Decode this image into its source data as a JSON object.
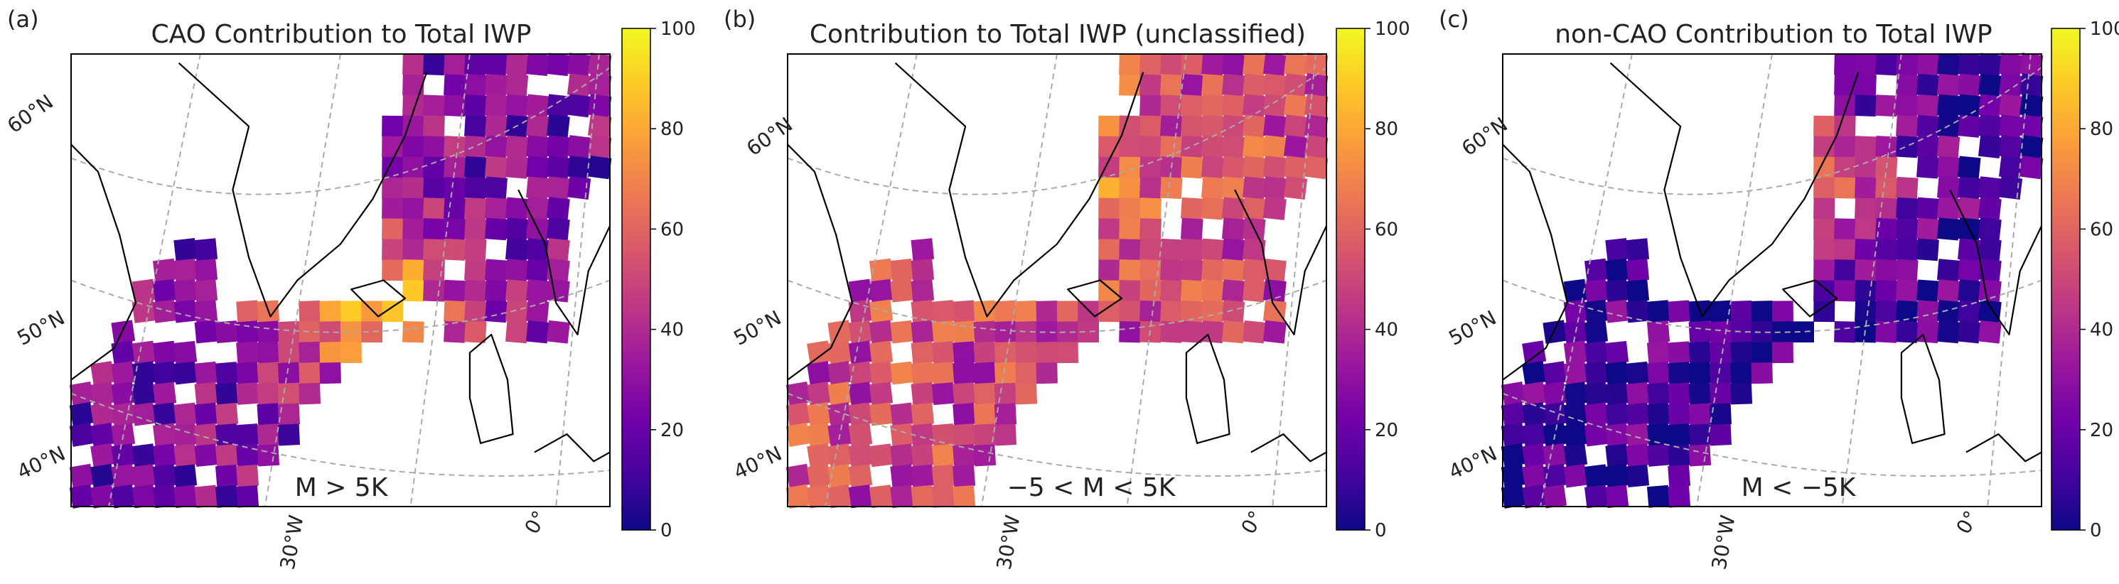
{
  "figure": {
    "colormap": [
      "#0d0887",
      "#46039f",
      "#7201a8",
      "#9c179e",
      "#bd3786",
      "#d8576b",
      "#ed7953",
      "#fb9f3a",
      "#fdca26",
      "#f0f921"
    ],
    "colorbar_ticks": [
      "0",
      "20",
      "40",
      "60",
      "80",
      "100"
    ],
    "lat_labels": [
      "60°N",
      "50°N",
      "40°N"
    ],
    "lon_labels": [
      "30°W",
      "0°"
    ]
  },
  "chart_data": [
    {
      "type": "heatmap",
      "panel_letter": "(a)",
      "title": "CAO Contribution to Total IWP",
      "annotation": "M > 5K",
      "colorbar_range": [
        0,
        100
      ],
      "dominant_values": "high (60–100) south and east of Greenland and toward Norway; low (0–30) along the Labrador Sea and Greenland coasts",
      "seed": 11,
      "bias": 0.25,
      "hotspot": [
        0.55,
        0.55
      ],
      "hot": 0.55
    },
    {
      "type": "heatmap",
      "panel_letter": "(b)",
      "title": "Contribution to Total IWP (unclassified)",
      "annotation": "−5 < M < 5K",
      "colorbar_range": [
        0,
        100
      ],
      "dominant_values": "mostly intermediate (50–75) across the domain, with scattered low and high cells",
      "seed": 23,
      "bias": 0.5,
      "hotspot": [
        0.5,
        0.3
      ],
      "hot": 0.2
    },
    {
      "type": "heatmap",
      "panel_letter": "(c)",
      "title": "non-CAO Contribution to Total IWP",
      "annotation": "M < −5K",
      "colorbar_range": [
        0,
        100
      ],
      "dominant_values": "mostly low (0–30), with higher values (60–95) east of Greenland toward Iceland and in the southwest",
      "seed": 37,
      "bias": 0.12,
      "hotspot": [
        0.58,
        0.28
      ],
      "hot": 0.45
    }
  ]
}
